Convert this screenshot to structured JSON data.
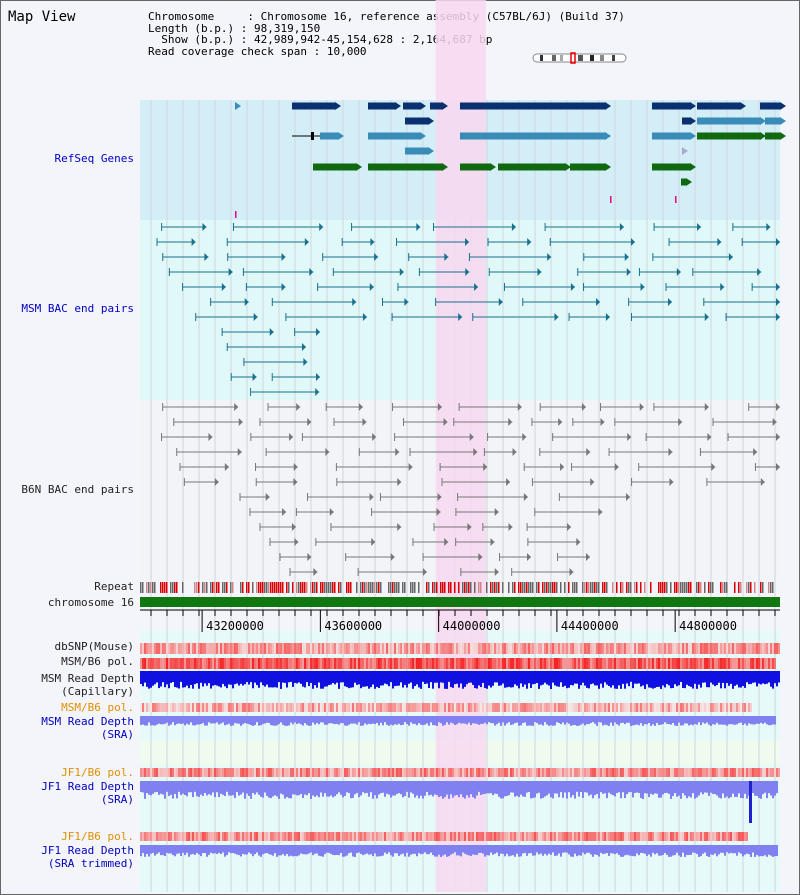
{
  "title": "Map View",
  "info": {
    "chromosome_key": "Chromosome     ",
    "chromosome_val": ": Chromosome 16, reference assembly (C57BL/6J) (Build 37)",
    "length_key": "Length (b.p.) ",
    "length_val": ": 98,319,150",
    "show_key": "  Show (b.p.) ",
    "show_val": ": 42,989,942-45,154,628 : 2,164,687 bp",
    "span_key": "Read coverage check span ",
    "span_val": ": 10,000"
  },
  "tracks": {
    "refseq": "RefSeq Genes",
    "msm_bac": "MSM BAC end pairs",
    "b6n_bac": "B6N BAC end pairs",
    "repeat": "Repeat",
    "chromosome": "chromosome 16",
    "dbsnp": "dbSNP(Mouse)",
    "msm_pol1": "MSM/B6 pol.",
    "msm_depth_cap1": "MSM Read Depth",
    "msm_depth_cap2": "(Capillary)",
    "msm_pol2": "MSM/B6 pol.",
    "msm_depth_sra1": "MSM Read Depth",
    "msm_depth_sra2": "(SRA)",
    "jf1_pol1": "JF1/B6 pol.",
    "jf1_depth_sra1": "JF1 Read Depth",
    "jf1_depth_sra2": "(SRA)",
    "jf1_pol2": "JF1/B6 pol.",
    "jf1_depth_trim1": "JF1 Read Depth",
    "jf1_depth_trim2": "(SRA trimmed)"
  },
  "axis": {
    "range": [
      42989942,
      45154628
    ],
    "ticks": [
      "43200000",
      "43600000",
      "44000000",
      "44400000",
      "44800000"
    ],
    "tick_values": [
      43200000,
      43600000,
      44000000,
      44400000,
      44800000
    ]
  },
  "highlight": {
    "start": 43990000,
    "end": 44160000,
    "color": "#f8d8f0"
  },
  "colors": {
    "refseq_dark": "#0a3070",
    "refseq_mid": "#3a8cb8",
    "refseq_green": "#106810",
    "msm_bac": "#1a7090",
    "b6n_bac": "#777777",
    "chromosome": "#117711",
    "depth_msm": "#1010e0",
    "depth_sra": "#8080f0"
  }
}
